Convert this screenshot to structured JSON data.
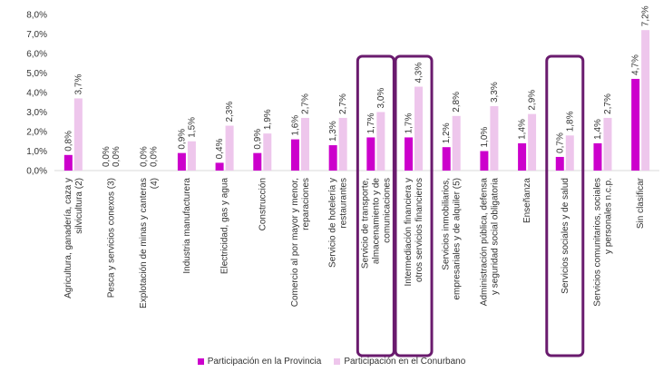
{
  "chart_data": {
    "type": "bar",
    "title": "",
    "xlabel": "",
    "ylabel": "",
    "ylim": [
      0,
      8
    ],
    "y_ticks": [
      "0,0%",
      "1,0%",
      "2,0%",
      "3,0%",
      "4,0%",
      "5,0%",
      "6,0%",
      "7,0%",
      "8,0%"
    ],
    "grid": false,
    "legend_position": "bottom",
    "categories": [
      "Agricultura, ganadería, caza y silvicultura (2)",
      "Pesca y servicios conexos (3)",
      "Explotación de minas y canteras (4)",
      "Industria manufacturera",
      "Electricidad, gas y agua",
      "Construcción",
      "Comercio al por mayor y menor, reparaciones",
      "Servicio de hotelería y restaurantes",
      "Servicio de transporte, almacenamiento y de comunicaciones",
      "Intermediación financiera y otros servicios financieros",
      "Servicios inmobiliarios, empresariales y de alquiler (5)",
      "Administración pública, defensa y seguridad social obligatoria",
      "Enseñanza",
      "Servicios sociales y de salud",
      "Servicios comunitarios, sociales y personales n.c.p.",
      "Sin clasificar"
    ],
    "series": [
      {
        "name": "Participación en la Provincia",
        "color": "#cc00cc",
        "values": [
          0.8,
          0.0,
          0.0,
          0.9,
          0.4,
          0.9,
          1.6,
          1.3,
          1.7,
          1.7,
          1.2,
          1.0,
          1.4,
          0.7,
          1.4,
          4.7
        ],
        "labels": [
          "0,8%",
          "0,0%",
          "0,0%",
          "0,9%",
          "0,4%",
          "0,9%",
          "1,6%",
          "1,3%",
          "1,7%",
          "1,7%",
          "1,2%",
          "1,0%",
          "1,4%",
          "0,7%",
          "1,4%",
          "4,7%"
        ]
      },
      {
        "name": "Participación en el Conurbano",
        "color": "#eec6ec",
        "values": [
          3.7,
          0.0,
          0.0,
          1.5,
          2.3,
          1.9,
          2.7,
          2.7,
          3.0,
          4.3,
          2.8,
          3.3,
          2.9,
          1.8,
          2.7,
          7.2
        ],
        "labels": [
          "3,7%",
          "0,0%",
          "0,0%",
          "1,5%",
          "2,3%",
          "1,9%",
          "2,7%",
          "2,7%",
          "3,0%",
          "4,3%",
          "2,8%",
          "3,3%",
          "2,9%",
          "1,8%",
          "2,7%",
          "7,2%"
        ]
      }
    ],
    "highlighted_categories": [
      8,
      9,
      13
    ],
    "highlight_color": "#6a1b6e"
  }
}
